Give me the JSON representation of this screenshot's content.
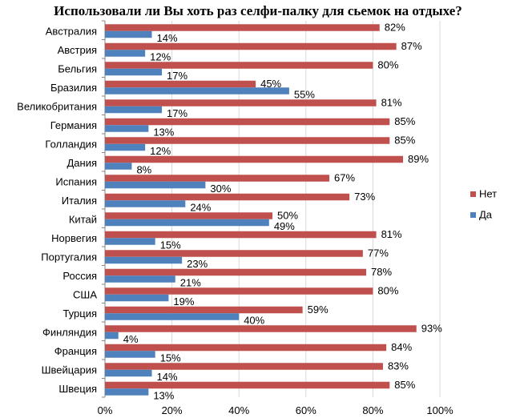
{
  "chart_data": {
    "type": "bar",
    "orientation": "horizontal",
    "title": "Использовали  ли Вы хоть раз селфи-палку  для сьемок на отдыхе?",
    "categories": [
      "Австралия",
      "Австрия",
      "Бельгия",
      "Бразилия",
      "Великобритания",
      "Германия",
      "Голландия",
      "Дания",
      "Испания",
      "Италия",
      "Китай",
      "Норвегия",
      "Португалия",
      "Россия",
      "США",
      "Турция",
      "Финляндия",
      "Франция",
      "Швейцария",
      "Швеция"
    ],
    "series": [
      {
        "name": "Нет",
        "color": "#C0504D",
        "values": [
          82,
          87,
          80,
          45,
          81,
          85,
          85,
          89,
          67,
          73,
          50,
          81,
          77,
          78,
          80,
          59,
          93,
          84,
          83,
          85
        ]
      },
      {
        "name": "Да",
        "color": "#4F81BD",
        "values": [
          14,
          12,
          17,
          55,
          17,
          13,
          12,
          8,
          30,
          24,
          49,
          15,
          23,
          21,
          19,
          40,
          4,
          15,
          14,
          13
        ]
      }
    ],
    "xlim": [
      0,
      100
    ],
    "xticks": [
      "0%",
      "20%",
      "40%",
      "60%",
      "80%",
      "100%"
    ],
    "value_suffix": "%",
    "grid": true,
    "legend_position": "right"
  }
}
